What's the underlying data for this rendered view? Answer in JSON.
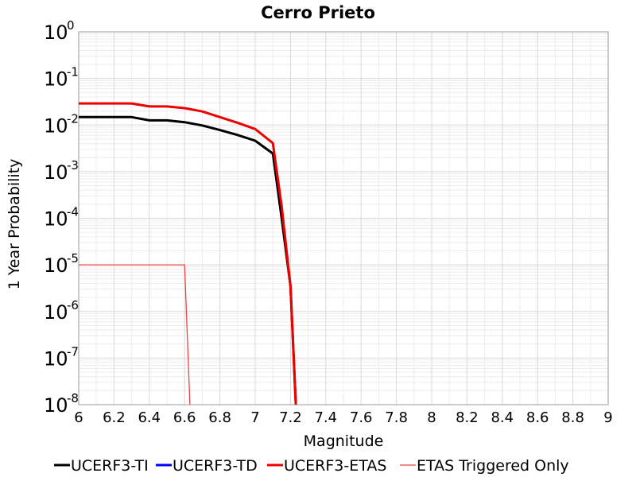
{
  "chart_data": {
    "type": "line",
    "title": "Cerro Prieto",
    "xlabel": "Magnitude",
    "ylabel": "1 Year Probability",
    "xlim": [
      6,
      9
    ],
    "ylim": [
      1e-08,
      1
    ],
    "y_scale": "log",
    "grid": true,
    "legend_position": "bottom",
    "x_ticks": [
      "6",
      "6.2",
      "6.4",
      "6.6",
      "6.8",
      "7",
      "7.2",
      "7.4",
      "7.6",
      "7.8",
      "8",
      "8.2",
      "8.4",
      "8.6",
      "8.8",
      "9"
    ],
    "y_ticks": [
      {
        "base": "10",
        "exp": "0"
      },
      {
        "base": "10",
        "exp": "-1"
      },
      {
        "base": "10",
        "exp": "-2"
      },
      {
        "base": "10",
        "exp": "-3"
      },
      {
        "base": "10",
        "exp": "-4"
      },
      {
        "base": "10",
        "exp": "-5"
      },
      {
        "base": "10",
        "exp": "-6"
      },
      {
        "base": "10",
        "exp": "-7"
      },
      {
        "base": "10",
        "exp": "-8"
      }
    ],
    "series": [
      {
        "name": "UCERF3-TI",
        "color": "#000000",
        "width": 3,
        "x": [
          6.0,
          6.1,
          6.2,
          6.3,
          6.4,
          6.5,
          6.6,
          6.7,
          6.8,
          6.9,
          7.0,
          7.1,
          7.15,
          7.2,
          7.23
        ],
        "y": [
          0.0148,
          0.0148,
          0.0148,
          0.0148,
          0.0126,
          0.0126,
          0.0115,
          0.0098,
          0.0078,
          0.0061,
          0.0046,
          0.00245,
          0.0001,
          3.5e-06,
          1e-08
        ]
      },
      {
        "name": "UCERF3-TD",
        "color": "#0000ff",
        "width": 3,
        "x": [],
        "y": []
      },
      {
        "name": "UCERF3-ETAS",
        "color": "#ee0000",
        "width": 3,
        "x": [
          6.0,
          6.1,
          6.2,
          6.3,
          6.4,
          6.5,
          6.6,
          6.7,
          6.8,
          6.9,
          7.0,
          7.1,
          7.15,
          7.2,
          7.23
        ],
        "y": [
          0.029,
          0.029,
          0.029,
          0.029,
          0.025,
          0.025,
          0.023,
          0.0195,
          0.0148,
          0.0112,
          0.0082,
          0.0041,
          0.00018,
          3.5e-06,
          1e-08
        ]
      },
      {
        "name": "ETAS Triggered Only",
        "color": "#ee4444",
        "width": 1.3,
        "x": [
          6.0,
          6.1,
          6.2,
          6.3,
          6.4,
          6.5,
          6.6,
          6.63
        ],
        "y": [
          1e-05,
          1e-05,
          1e-05,
          1e-05,
          1e-05,
          1e-05,
          1e-05,
          1e-08
        ]
      }
    ]
  }
}
